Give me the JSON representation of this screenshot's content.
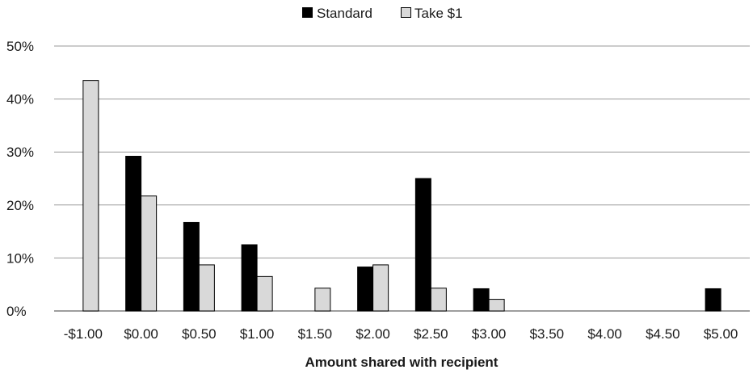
{
  "chart_data": {
    "type": "bar",
    "title": "",
    "xlabel": "Amount shared with recipient",
    "ylabel": "",
    "categories": [
      "-$1.00",
      "$0.00",
      "$0.50",
      "$1.00",
      "$1.50",
      "$2.00",
      "$2.50",
      "$3.00",
      "$3.50",
      "$4.00",
      "$4.50",
      "$5.00"
    ],
    "series": [
      {
        "name": "Standard",
        "color": "#000000",
        "values": [
          0,
          29.2,
          16.7,
          12.5,
          0,
          8.3,
          25.0,
          4.2,
          0,
          0,
          0,
          4.2
        ]
      },
      {
        "name": "Take $1",
        "color": "#d9d9d9",
        "values": [
          43.5,
          21.7,
          8.7,
          6.5,
          4.3,
          8.7,
          4.3,
          2.2,
          0,
          0,
          0,
          0
        ]
      }
    ],
    "ylim": [
      0,
      50
    ],
    "yticks": [
      "0%",
      "10%",
      "20%",
      "30%",
      "40%",
      "50%"
    ],
    "grid": true,
    "legend_position": "top"
  }
}
